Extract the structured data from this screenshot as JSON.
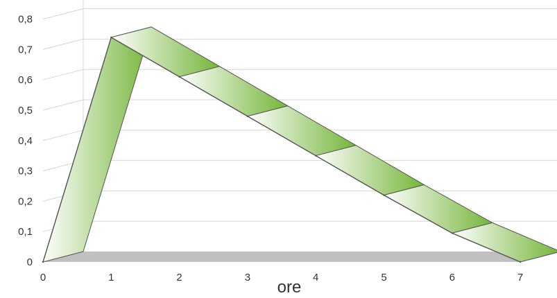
{
  "chart_data": {
    "type": "line",
    "style": "3d-ribbon",
    "title": "",
    "xlabel": "ore",
    "ylabel": "",
    "x": [
      0,
      1,
      2,
      3,
      4,
      5,
      6,
      7
    ],
    "series": [
      {
        "values": [
          0,
          0.74,
          0.61,
          0.48,
          0.35,
          0.22,
          0.095,
          0
        ]
      }
    ],
    "xticks": [
      "0",
      "1",
      "2",
      "3",
      "4",
      "5",
      "6",
      "7"
    ],
    "yticks": [
      "0",
      "0,1",
      "0,2",
      "0,3",
      "0,4",
      "0,5",
      "0,6",
      "0,7",
      "0,8"
    ],
    "ylim": [
      0,
      0.8
    ],
    "xlim": [
      0,
      7
    ],
    "grid": true,
    "legend": "none",
    "colors": {
      "ribbon_light": "#ffffff",
      "ribbon_dark": "#74b538",
      "outline": "#555555",
      "gridline": "#d6d6d6",
      "floor": "#c0c0c0",
      "axis_text": "#333333"
    }
  }
}
